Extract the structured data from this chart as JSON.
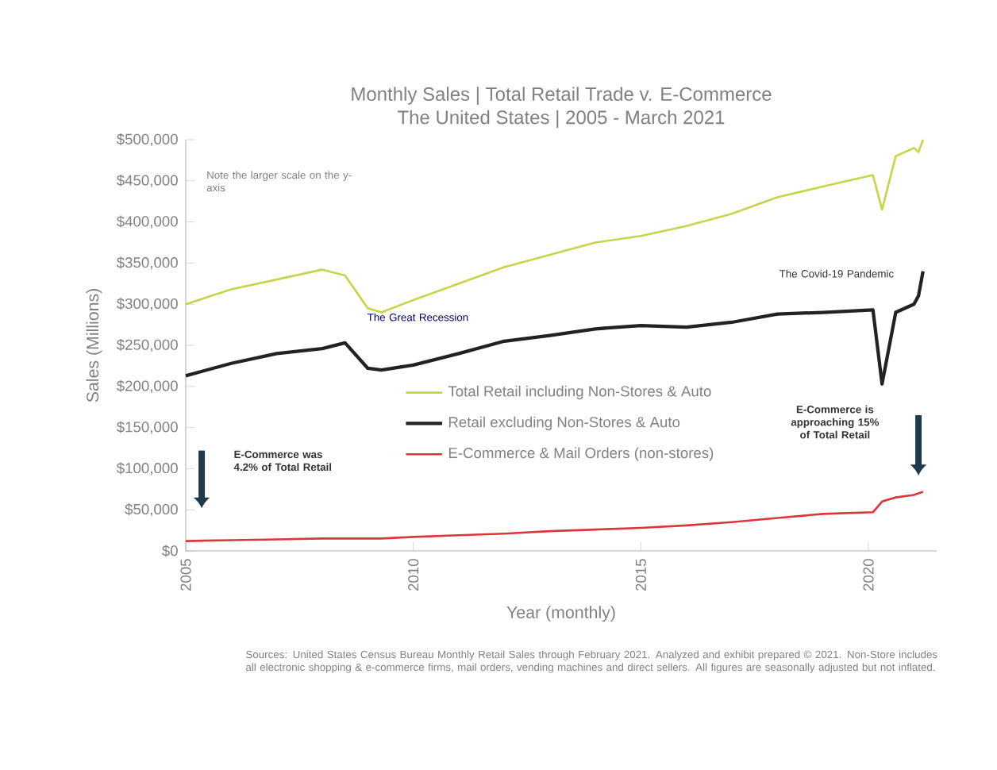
{
  "chart_data": {
    "type": "line",
    "title": "Monthly Sales | Total Retail Trade v. E-Commerce",
    "subtitle": "The United States | 2005 - March 2021",
    "xlabel": "Year (monthly)",
    "ylabel": "Sales (Millions)",
    "xlim": [
      2005,
      2021.5
    ],
    "xticks": [
      2005,
      2010,
      2015,
      2020
    ],
    "ylim": [
      0,
      500000
    ],
    "yticks": [
      {
        "value": 0,
        "label": "$0"
      },
      {
        "value": 50000,
        "label": "$50,000"
      },
      {
        "value": 100000,
        "label": "$100,000"
      },
      {
        "value": 150000,
        "label": "$150,000"
      },
      {
        "value": 200000,
        "label": "$200,000"
      },
      {
        "value": 250000,
        "label": "$250,000"
      },
      {
        "value": 300000,
        "label": "$300,000"
      },
      {
        "value": 350000,
        "label": "$350,000"
      },
      {
        "value": 400000,
        "label": "$400,000"
      },
      {
        "value": 450000,
        "label": "$450,000"
      },
      {
        "value": 500000,
        "label": "$500,000"
      }
    ],
    "x": [
      2005,
      2006,
      2007,
      2008,
      2008.5,
      2009,
      2009.3,
      2010,
      2011,
      2012,
      2013,
      2014,
      2015,
      2016,
      2017,
      2018,
      2019,
      2020.1,
      2020.3,
      2020.6,
      2021,
      2021.1,
      2021.2
    ],
    "series": [
      {
        "name": "Total Retail including Non-Stores & Auto",
        "color": "#c8d44a",
        "values": [
          300000,
          318000,
          330000,
          342000,
          335000,
          295000,
          290000,
          305000,
          325000,
          345000,
          360000,
          375000,
          383000,
          395000,
          410000,
          430000,
          443000,
          457000,
          415000,
          480000,
          490000,
          485000,
          500000
        ]
      },
      {
        "name": "Retail excluding Non-Stores & Auto",
        "color": "#222222",
        "values": [
          213000,
          228000,
          240000,
          246000,
          253000,
          222000,
          220000,
          226000,
          240000,
          255000,
          262000,
          270000,
          274000,
          272000,
          278000,
          288000,
          290000,
          293000,
          203000,
          290000,
          300000,
          310000,
          340000
        ]
      },
      {
        "name": "E-Commerce & Mail Orders (non-stores)",
        "color": "#d9383a",
        "values": [
          12000,
          13000,
          14000,
          15000,
          15000,
          15000,
          15000,
          17000,
          19000,
          21000,
          24000,
          26000,
          28000,
          31000,
          35000,
          40000,
          45000,
          47000,
          60000,
          65000,
          68000,
          70000,
          72000
        ]
      }
    ],
    "legend": "center",
    "grid": false,
    "annotations": [
      "Note the larger scale on the y-axis",
      "The Great Recession",
      "The Covid-19 Pandemic",
      "E-Commerce was 4.2% of Total Retail",
      "E-Commerce is approaching 15% of Total Retail",
      "Sources: United States Census Bureau Monthly Retail Sales through February 2021. Analyzed and exhibit prepared © 2021. Non-Store includes all electronic shopping & e-commerce firms, mail orders, vending machines and direct sellers. All figures are seasonally adjusted but not inflated."
    ]
  }
}
